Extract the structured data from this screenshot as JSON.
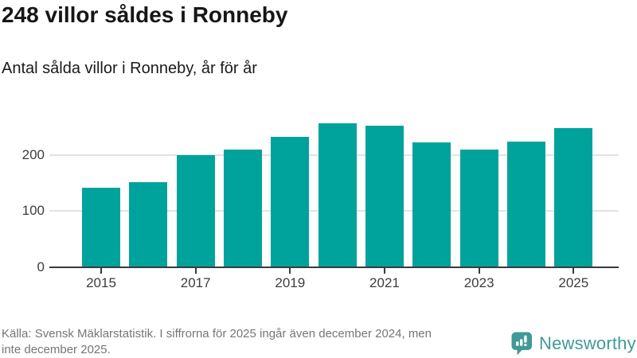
{
  "chart_data": {
    "type": "bar",
    "title": "248 villor såldes i Ronneby",
    "subtitle": "Antal sålda villor i Ronneby, år för år",
    "categories": [
      2015,
      2016,
      2017,
      2018,
      2019,
      2020,
      2021,
      2022,
      2023,
      2024,
      2025
    ],
    "values": [
      141,
      151,
      200,
      210,
      232,
      257,
      252,
      222,
      210,
      224,
      248
    ],
    "xlabel": "",
    "ylabel": "",
    "ylim": [
      0,
      280
    ],
    "yticks": [
      0,
      100,
      200
    ],
    "xtick_labels": [
      "2015",
      "2017",
      "2019",
      "2021",
      "2023",
      "2025"
    ],
    "grid": "horizontal",
    "legend": "none",
    "bar_color": "#00a39b"
  },
  "footer": {
    "lines": [
      "Källa: Svensk Mäklarstatistik. I siffrorna för 2025 ingår även december 2024, men",
      "inte december 2025."
    ],
    "brand_name": "Newsworthy",
    "brand_color": "#3f9a96"
  },
  "colors": {
    "bar": "#00a39b",
    "gridline": "#e2e2e2",
    "axis": "#3a3a3a",
    "axis_text": "#3d3d3d",
    "title_text": "#161616",
    "footer_text": "#767676",
    "brand": "#3f9a96"
  }
}
